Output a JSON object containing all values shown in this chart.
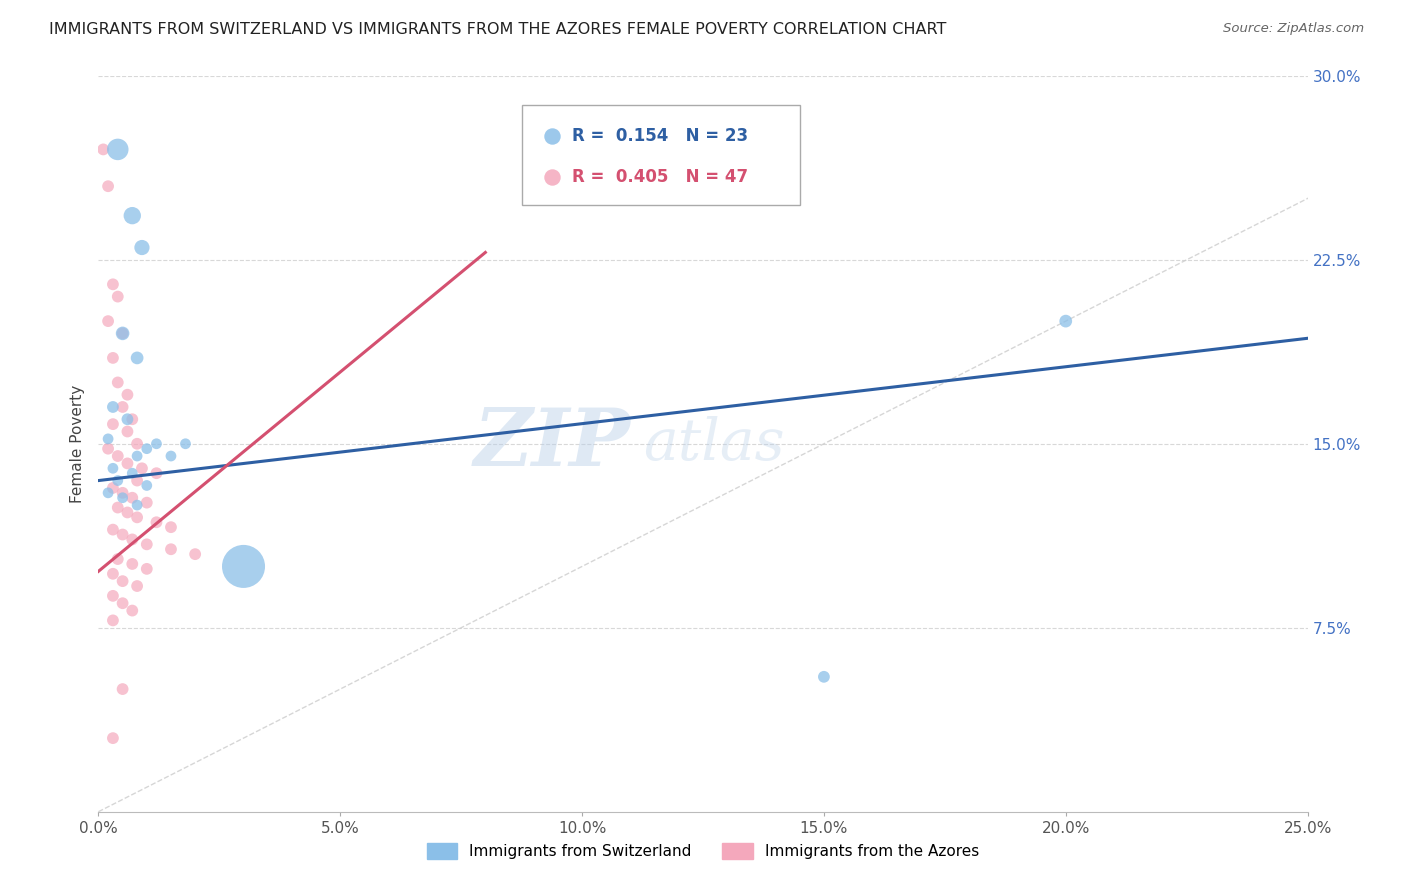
{
  "title": "IMMIGRANTS FROM SWITZERLAND VS IMMIGRANTS FROM THE AZORES FEMALE POVERTY CORRELATION CHART",
  "source": "Source: ZipAtlas.com",
  "ylabel": "Female Poverty",
  "xlim": [
    0.0,
    0.25
  ],
  "ylim": [
    0.0,
    0.3
  ],
  "xticks": [
    0.0,
    0.05,
    0.1,
    0.15,
    0.2,
    0.25
  ],
  "xticklabels": [
    "0.0%",
    "5.0%",
    "10.0%",
    "15.0%",
    "20.0%",
    "25.0%"
  ],
  "yticks": [
    0.075,
    0.15,
    0.225,
    0.3
  ],
  "yticklabels": [
    "7.5%",
    "15.0%",
    "22.5%",
    "30.0%"
  ],
  "switzerland_color": "#8bbfe8",
  "azores_color": "#f4a8bc",
  "switzerland_line_color": "#2e5fa3",
  "azores_line_color": "#d45070",
  "r_switzerland": 0.154,
  "n_switzerland": 23,
  "r_azores": 0.405,
  "n_azores": 47,
  "watermark_zip": "ZIP",
  "watermark_atlas": "atlas",
  "background_color": "#ffffff",
  "grid_color": "#d8d8d8",
  "sw_line_x0": 0.0,
  "sw_line_y0": 0.135,
  "sw_line_x1": 0.25,
  "sw_line_y1": 0.193,
  "az_line_x0": 0.0,
  "az_line_y0": 0.098,
  "az_line_x1": 0.08,
  "az_line_y1": 0.228,
  "switzerland_points": [
    [
      0.004,
      0.27
    ],
    [
      0.007,
      0.243
    ],
    [
      0.009,
      0.23
    ],
    [
      0.005,
      0.195
    ],
    [
      0.008,
      0.185
    ],
    [
      0.003,
      0.165
    ],
    [
      0.006,
      0.16
    ],
    [
      0.002,
      0.152
    ],
    [
      0.012,
      0.15
    ],
    [
      0.01,
      0.148
    ],
    [
      0.008,
      0.145
    ],
    [
      0.015,
      0.145
    ],
    [
      0.018,
      0.15
    ],
    [
      0.003,
      0.14
    ],
    [
      0.007,
      0.138
    ],
    [
      0.004,
      0.135
    ],
    [
      0.01,
      0.133
    ],
    [
      0.002,
      0.13
    ],
    [
      0.005,
      0.128
    ],
    [
      0.008,
      0.125
    ],
    [
      0.03,
      0.1
    ],
    [
      0.2,
      0.2
    ],
    [
      0.15,
      0.055
    ]
  ],
  "switzerland_sizes": [
    200,
    130,
    100,
    80,
    70,
    60,
    60,
    50,
    50,
    50,
    50,
    50,
    50,
    50,
    50,
    50,
    50,
    50,
    50,
    50,
    800,
    70,
    60
  ],
  "azores_points": [
    [
      0.001,
      0.27
    ],
    [
      0.002,
      0.255
    ],
    [
      0.003,
      0.215
    ],
    [
      0.004,
      0.21
    ],
    [
      0.002,
      0.2
    ],
    [
      0.003,
      0.185
    ],
    [
      0.005,
      0.195
    ],
    [
      0.004,
      0.175
    ],
    [
      0.006,
      0.17
    ],
    [
      0.005,
      0.165
    ],
    [
      0.007,
      0.16
    ],
    [
      0.003,
      0.158
    ],
    [
      0.006,
      0.155
    ],
    [
      0.008,
      0.15
    ],
    [
      0.002,
      0.148
    ],
    [
      0.004,
      0.145
    ],
    [
      0.006,
      0.142
    ],
    [
      0.009,
      0.14
    ],
    [
      0.012,
      0.138
    ],
    [
      0.008,
      0.135
    ],
    [
      0.003,
      0.132
    ],
    [
      0.005,
      0.13
    ],
    [
      0.007,
      0.128
    ],
    [
      0.01,
      0.126
    ],
    [
      0.004,
      0.124
    ],
    [
      0.006,
      0.122
    ],
    [
      0.008,
      0.12
    ],
    [
      0.012,
      0.118
    ],
    [
      0.015,
      0.116
    ],
    [
      0.003,
      0.115
    ],
    [
      0.005,
      0.113
    ],
    [
      0.007,
      0.111
    ],
    [
      0.01,
      0.109
    ],
    [
      0.015,
      0.107
    ],
    [
      0.02,
      0.105
    ],
    [
      0.004,
      0.103
    ],
    [
      0.007,
      0.101
    ],
    [
      0.01,
      0.099
    ],
    [
      0.003,
      0.097
    ],
    [
      0.005,
      0.094
    ],
    [
      0.008,
      0.092
    ],
    [
      0.003,
      0.088
    ],
    [
      0.005,
      0.085
    ],
    [
      0.007,
      0.082
    ],
    [
      0.003,
      0.078
    ],
    [
      0.005,
      0.05
    ],
    [
      0.003,
      0.03
    ]
  ],
  "azores_sizes": [
    60,
    60,
    60,
    60,
    60,
    60,
    60,
    60,
    60,
    60,
    60,
    60,
    60,
    60,
    60,
    60,
    60,
    60,
    60,
    60,
    60,
    60,
    60,
    60,
    60,
    60,
    60,
    60,
    60,
    60,
    60,
    60,
    60,
    60,
    60,
    60,
    60,
    60,
    60,
    60,
    60,
    60,
    60,
    60,
    60,
    60,
    60
  ]
}
